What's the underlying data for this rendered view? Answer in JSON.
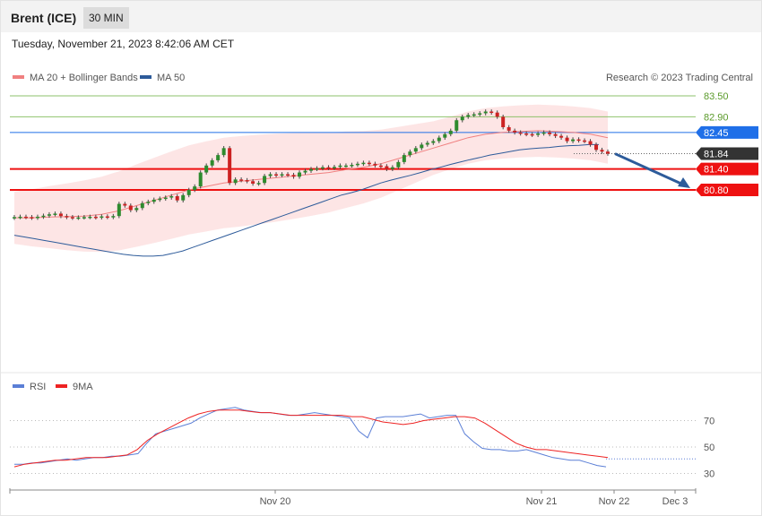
{
  "header": {
    "title": "Brent (ICE)",
    "interval": "30 MIN"
  },
  "timestamp": "Tuesday, November 21, 2023 8:42:06 AM CET",
  "legend": {
    "ma20": "MA 20 + Bollinger Bands",
    "ma50": "MA 50",
    "credit": "Research © 2023 Trading Central",
    "rsi": "RSI",
    "rsi_ma": "9MA"
  },
  "colors": {
    "ma20": "#f08080",
    "ma50": "#2d5b9a",
    "bull": "#2e8b2e",
    "bear": "#cc2222",
    "resistance": "#8ec26b",
    "pivot": "#1f6fe8",
    "support": "#ee1111",
    "last": "#333333",
    "rsi": "#5b7fd6",
    "rsi_ma": "#ee2222",
    "band": "#fde0e0"
  },
  "chart_data": [
    {
      "type": "line",
      "name": "price",
      "xlabels": [
        "Nov 20",
        "Nov 21",
        "Nov 22",
        "Dec 3"
      ],
      "ylim": [
        78.9,
        83.9
      ],
      "levels": [
        {
          "label": "83.50",
          "value": 83.5,
          "kind": "resistance"
        },
        {
          "label": "82.90",
          "value": 82.9,
          "kind": "resistance"
        },
        {
          "label": "82.45",
          "value": 82.45,
          "kind": "pivot"
        },
        {
          "label": "81.84",
          "value": 81.84,
          "kind": "last"
        },
        {
          "label": "81.40",
          "value": 81.4,
          "kind": "support"
        },
        {
          "label": "80.80",
          "value": 80.8,
          "kind": "support"
        }
      ],
      "close": [
        80.02,
        80.03,
        80.02,
        80.0,
        80.03,
        80.06,
        80.1,
        80.12,
        80.05,
        80.02,
        80.0,
        80.01,
        80.02,
        80.03,
        80.01,
        80.04,
        80.02,
        80.05,
        80.4,
        80.35,
        80.22,
        80.28,
        80.42,
        80.46,
        80.52,
        80.55,
        80.58,
        80.62,
        80.5,
        80.65,
        80.8,
        80.9,
        81.3,
        81.5,
        81.65,
        81.8,
        82.0,
        81.0,
        81.1,
        81.08,
        81.05,
        80.98,
        81.0,
        81.2,
        81.25,
        81.22,
        81.25,
        81.23,
        81.18,
        81.3,
        81.35,
        81.4,
        81.42,
        81.45,
        81.43,
        81.46,
        81.5,
        81.5,
        81.52,
        81.55,
        81.58,
        81.55,
        81.5,
        81.48,
        81.4,
        81.45,
        81.6,
        81.8,
        81.9,
        82.0,
        82.1,
        82.15,
        82.2,
        82.3,
        82.4,
        82.5,
        82.8,
        82.9,
        82.95,
        82.97,
        83.0,
        83.05,
        83.02,
        82.9,
        82.6,
        82.5,
        82.45,
        82.42,
        82.4,
        82.38,
        82.42,
        82.45,
        82.4,
        82.35,
        82.3,
        82.2,
        82.25,
        82.22,
        82.2,
        82.1,
        81.95,
        81.9,
        81.84
      ],
      "ma50": [
        79.5,
        79.45,
        79.4,
        79.35,
        79.3,
        79.25,
        79.2,
        79.15,
        79.1,
        79.05,
        79.0,
        78.95,
        78.92,
        78.9,
        78.9,
        78.92,
        78.98,
        79.05,
        79.15,
        79.25,
        79.35,
        79.45,
        79.55,
        79.65,
        79.75,
        79.85,
        79.95,
        80.05,
        80.15,
        80.25,
        80.35,
        80.45,
        80.55,
        80.65,
        80.72,
        80.8,
        80.9,
        81.0,
        81.08,
        81.15,
        81.22,
        81.3,
        81.38,
        81.45,
        81.53,
        81.6,
        81.67,
        81.73,
        81.8,
        81.85,
        81.9,
        81.95,
        81.98,
        82.0,
        82.02,
        82.05,
        82.07,
        82.08,
        82.1,
        82.1
      ],
      "ma20": [
        80.0,
        80.0,
        80.02,
        80.03,
        80.05,
        80.1,
        80.2,
        80.35,
        80.5,
        80.65,
        80.8,
        80.9,
        81.0,
        81.05,
        81.1,
        81.15,
        81.2,
        81.25,
        81.3,
        81.38,
        81.45,
        81.55,
        81.7,
        81.85,
        82.0,
        82.15,
        82.3,
        82.4,
        82.45,
        82.48,
        82.5,
        82.48,
        82.45,
        82.4,
        82.3
      ]
    },
    {
      "type": "line",
      "name": "RSI",
      "yticks": [
        "70",
        "50",
        "30"
      ],
      "ylim": [
        20,
        80
      ],
      "rsi": [
        37,
        37,
        38,
        38,
        39,
        40,
        41,
        40,
        41,
        42,
        42,
        43,
        43,
        44,
        45,
        53,
        60,
        62,
        64,
        66,
        68,
        72,
        75,
        78,
        79,
        80,
        78,
        77,
        76,
        76,
        75,
        74,
        74,
        75,
        76,
        75,
        74,
        73,
        72,
        62,
        57,
        72,
        73,
        73,
        73,
        74,
        75,
        72,
        73,
        74,
        74,
        60,
        54,
        49,
        48,
        48,
        47,
        47,
        48,
        46,
        44,
        42,
        41,
        40,
        40,
        38,
        36,
        35
      ],
      "rsi_ma": [
        35,
        37,
        38,
        39,
        40,
        40,
        41,
        42,
        42,
        42,
        43,
        44,
        48,
        55,
        60,
        64,
        68,
        72,
        75,
        77,
        78,
        78,
        78,
        77,
        76,
        76,
        75,
        74,
        74,
        74,
        74,
        74,
        74,
        73,
        73,
        71,
        69,
        68,
        67,
        68,
        70,
        71,
        72,
        73,
        73,
        72,
        68,
        63,
        58,
        53,
        50,
        48,
        48,
        47,
        46,
        45,
        44,
        43,
        42
      ]
    }
  ]
}
